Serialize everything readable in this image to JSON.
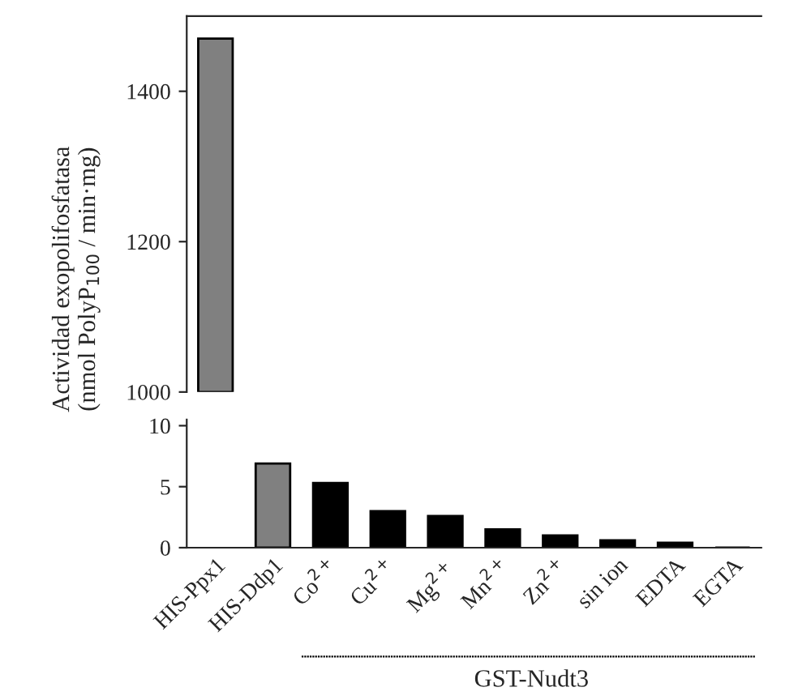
{
  "chart_data": [
    {
      "type": "bar",
      "ylabel": "Actividad exopolifosfatasa\n(nmol PolyP$_{100}$ / min·mg)",
      "values": [
        1470,
        null,
        null,
        null,
        null,
        null,
        null,
        null,
        null,
        null
      ],
      "colors": [
        "#808080",
        "#808080",
        "#000000",
        "#000000",
        "#000000",
        "#000000",
        "#000000",
        "#000000",
        "#000000",
        "#000000"
      ],
      "ylim": [
        1000,
        1500
      ],
      "yticks": [
        1000,
        1200,
        1400
      ],
      "tick_labels": "y",
      "grid": false,
      "legend": false
    },
    {
      "type": "bar",
      "categories": [
        "HIS-Ppx1",
        "HIS-Ddp1",
        "Co$^{2+}$",
        "Cu$^{2+}$",
        "Mg$^{2+}$",
        "Mn$^{2+}$",
        "Zn$^{2+}$",
        "sin ion",
        "EDTA",
        "EGTA"
      ],
      "values": [
        null,
        6.9,
        5.3,
        3.0,
        2.6,
        1.5,
        1.0,
        0.6,
        0.4,
        0.0
      ],
      "colors": [
        "#808080",
        "#808080",
        "#000000",
        "#000000",
        "#000000",
        "#000000",
        "#000000",
        "#000000",
        "#000000",
        "#000000"
      ],
      "ylim": [
        0,
        10.5
      ],
      "yticks": [
        0,
        5,
        10
      ],
      "grid": false,
      "legend": false,
      "annotations": [
        "GST-Nudt3"
      ]
    }
  ]
}
